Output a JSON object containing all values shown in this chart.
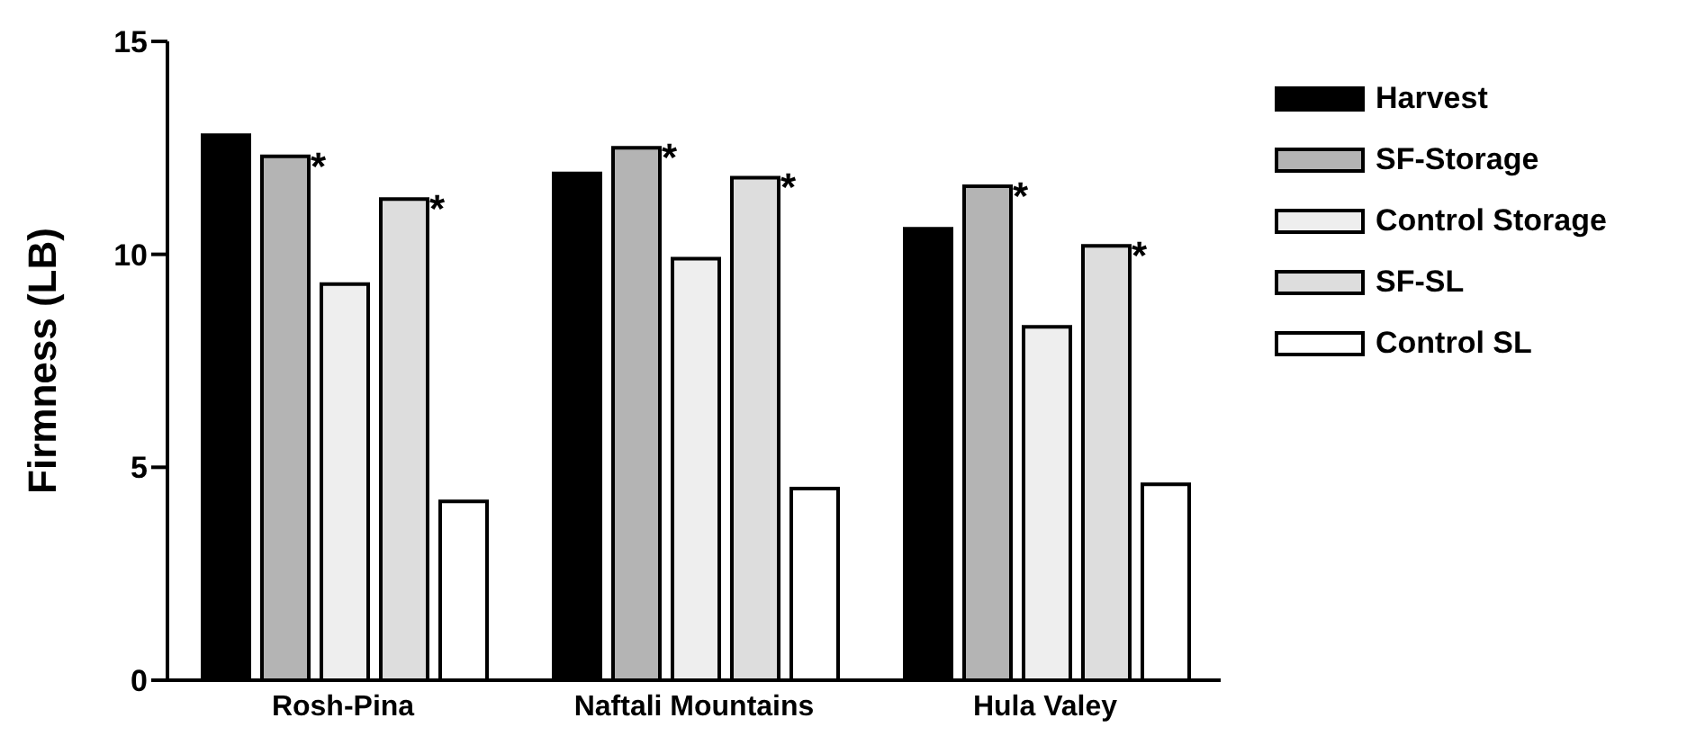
{
  "chart_data": {
    "type": "bar",
    "ylabel": "Firmness (LB)",
    "categories": [
      "Rosh-Pina",
      "Naftali Mountains",
      "Hula Valey"
    ],
    "series": [
      {
        "name": "Harvest",
        "color": "#000000",
        "values": [
          12.8,
          11.9,
          10.6
        ]
      },
      {
        "name": "SF-Storage",
        "color": "#b4b4b4",
        "values": [
          12.3,
          12.5,
          11.6
        ],
        "value_labels": [
          "*",
          "*",
          "*"
        ]
      },
      {
        "name": "Control Storage",
        "color": "#eeeeee",
        "values": [
          9.3,
          9.9,
          8.3
        ]
      },
      {
        "name": "SF-SL",
        "color": "#dddddd",
        "values": [
          11.3,
          11.8,
          10.2
        ],
        "value_labels": [
          "*",
          "*",
          "*"
        ]
      },
      {
        "name": "Control SL",
        "color": "#ffffff",
        "values": [
          4.2,
          4.5,
          4.6
        ]
      }
    ],
    "ylim": [
      0,
      15
    ],
    "yticks": [
      0,
      5,
      10,
      15
    ],
    "grid": false,
    "legend": "top right"
  }
}
